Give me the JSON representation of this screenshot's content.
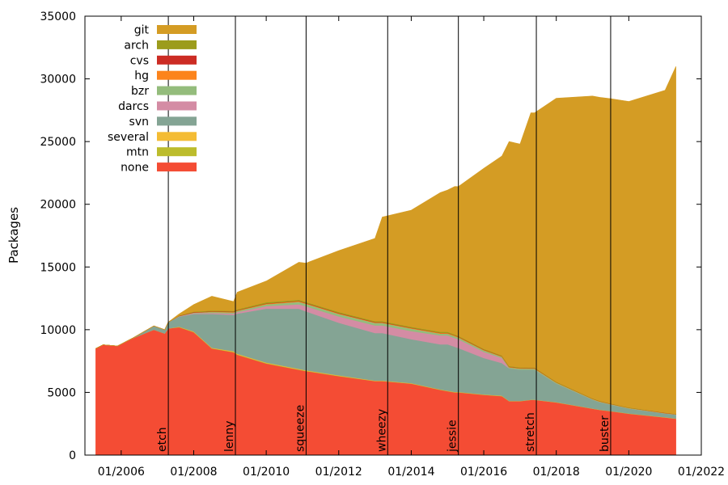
{
  "chart_data": {
    "type": "area",
    "ylabel": "Packages",
    "xlabel": "",
    "ylim": [
      0,
      35000
    ],
    "xlim": [
      2005.0,
      2022.0
    ],
    "yticks": [
      0,
      5000,
      10000,
      15000,
      20000,
      25000,
      30000,
      35000
    ],
    "xticks": [
      {
        "year": 2006,
        "label": "01/2006"
      },
      {
        "year": 2008,
        "label": "01/2008"
      },
      {
        "year": 2010,
        "label": "01/2010"
      },
      {
        "year": 2012,
        "label": "01/2012"
      },
      {
        "year": 2014,
        "label": "01/2014"
      },
      {
        "year": 2016,
        "label": "01/2016"
      },
      {
        "year": 2018,
        "label": "01/2018"
      },
      {
        "year": 2020,
        "label": "01/2020"
      },
      {
        "year": 2022,
        "label": "01/2022"
      }
    ],
    "x": [
      2005.3,
      2005.5,
      2005.9,
      2006.3,
      2006.9,
      2007.2,
      2007.3,
      2007.6,
      2008.0,
      2008.5,
      2009.1,
      2009.2,
      2010.0,
      2010.9,
      2011.1,
      2012.0,
      2013.0,
      2013.2,
      2014.0,
      2014.8,
      2015.0,
      2015.2,
      2015.3,
      2016.0,
      2016.5,
      2016.7,
      2017.0,
      2017.3,
      2017.4,
      2018.0,
      2019.0,
      2019.2,
      2019.5,
      2020.0,
      2021.0,
      2021.3
    ],
    "series": [
      {
        "name": "none",
        "color": "#f44c34",
        "values": [
          8500,
          8800,
          8700,
          9300,
          10000,
          9700,
          10100,
          10200,
          9800,
          8500,
          8200,
          8000,
          7300,
          6800,
          6700,
          6300,
          5900,
          5900,
          5700,
          5200,
          5100,
          5000,
          5000,
          4800,
          4700,
          4300,
          4300,
          4400,
          4400,
          4200,
          3700,
          3600,
          3500,
          3300,
          3000,
          2900
        ]
      },
      {
        "name": "mtn",
        "color": "#bcbc2c",
        "values": [
          0,
          0,
          0,
          0,
          0,
          0,
          0,
          20,
          30,
          30,
          40,
          40,
          40,
          40,
          30,
          30,
          20,
          20,
          20,
          20,
          20,
          20,
          20,
          20,
          20,
          10,
          10,
          10,
          10,
          10,
          10,
          10,
          10,
          10,
          10,
          10
        ]
      },
      {
        "name": "several",
        "color": "#f4bc34",
        "values": [
          0,
          0,
          0,
          0,
          0,
          0,
          0,
          20,
          30,
          30,
          40,
          40,
          40,
          40,
          30,
          30,
          20,
          20,
          20,
          20,
          20,
          20,
          20,
          20,
          20,
          10,
          10,
          10,
          10,
          10,
          10,
          10,
          10,
          10,
          10,
          10
        ]
      },
      {
        "name": "svn",
        "color": "#84a494",
        "values": [
          0,
          0,
          0,
          0,
          300,
          300,
          500,
          800,
          1400,
          2700,
          2900,
          3200,
          4300,
          4800,
          4700,
          4200,
          3800,
          3800,
          3500,
          3600,
          3700,
          3600,
          3500,
          2900,
          2600,
          2600,
          2500,
          2400,
          2400,
          1500,
          700,
          600,
          500,
          400,
          300,
          300
        ]
      },
      {
        "name": "darcs",
        "color": "#d48ca4",
        "values": [
          0,
          0,
          0,
          0,
          0,
          0,
          0,
          30,
          50,
          80,
          100,
          120,
          200,
          350,
          400,
          500,
          600,
          600,
          650,
          700,
          700,
          700,
          700,
          500,
          400,
          0,
          0,
          0,
          0,
          0,
          0,
          0,
          0,
          0,
          0,
          0
        ]
      },
      {
        "name": "bzr",
        "color": "#94bc7c",
        "values": [
          0,
          0,
          0,
          0,
          0,
          0,
          0,
          20,
          50,
          80,
          100,
          100,
          150,
          200,
          200,
          200,
          200,
          200,
          200,
          150,
          150,
          150,
          140,
          120,
          100,
          80,
          80,
          70,
          70,
          60,
          50,
          50,
          40,
          30,
          20,
          20
        ]
      },
      {
        "name": "hg",
        "color": "#fc841c",
        "values": [
          0,
          0,
          0,
          0,
          0,
          0,
          0,
          5,
          10,
          20,
          30,
          30,
          40,
          40,
          40,
          40,
          40,
          40,
          40,
          40,
          40,
          40,
          40,
          30,
          30,
          30,
          30,
          30,
          30,
          20,
          20,
          20,
          20,
          20,
          20,
          20
        ]
      },
      {
        "name": "cvs",
        "color": "#cc2c24",
        "values": [
          0,
          0,
          0,
          0,
          0,
          0,
          0,
          20,
          30,
          30,
          30,
          30,
          30,
          30,
          30,
          30,
          20,
          20,
          20,
          20,
          20,
          20,
          20,
          20,
          20,
          20,
          20,
          20,
          20,
          10,
          10,
          10,
          10,
          10,
          10,
          10
        ]
      },
      {
        "name": "arch",
        "color": "#9c9c1c",
        "values": [
          0,
          0,
          0,
          0,
          0,
          0,
          0,
          20,
          40,
          60,
          60,
          60,
          80,
          80,
          80,
          80,
          80,
          80,
          80,
          80,
          80,
          70,
          70,
          60,
          60,
          50,
          50,
          50,
          50,
          40,
          30,
          30,
          30,
          20,
          20,
          20
        ]
      },
      {
        "name": "git",
        "color": "#d49c24",
        "values": [
          0,
          0,
          0,
          0,
          0,
          0,
          0,
          120,
          560,
          1140,
          750,
          1370,
          1700,
          3000,
          3100,
          4900,
          6600,
          8300,
          9300,
          11100,
          11300,
          11800,
          11900,
          14400,
          15900,
          17900,
          17800,
          20300,
          20300,
          22600,
          24100,
          24200,
          24300,
          24400,
          25700,
          27700
        ]
      }
    ],
    "legend_order": [
      "git",
      "arch",
      "cvs",
      "hg",
      "bzr",
      "darcs",
      "svn",
      "several",
      "mtn",
      "none"
    ],
    "legend_position": "top-left",
    "annotations": [
      {
        "year": 2007.3,
        "label": "etch"
      },
      {
        "year": 2009.15,
        "label": "lenny"
      },
      {
        "year": 2011.1,
        "label": "squeeze"
      },
      {
        "year": 2013.35,
        "label": "wheezy"
      },
      {
        "year": 2015.3,
        "label": "jessie"
      },
      {
        "year": 2017.45,
        "label": "stretch"
      },
      {
        "year": 2019.5,
        "label": "buster"
      }
    ]
  }
}
